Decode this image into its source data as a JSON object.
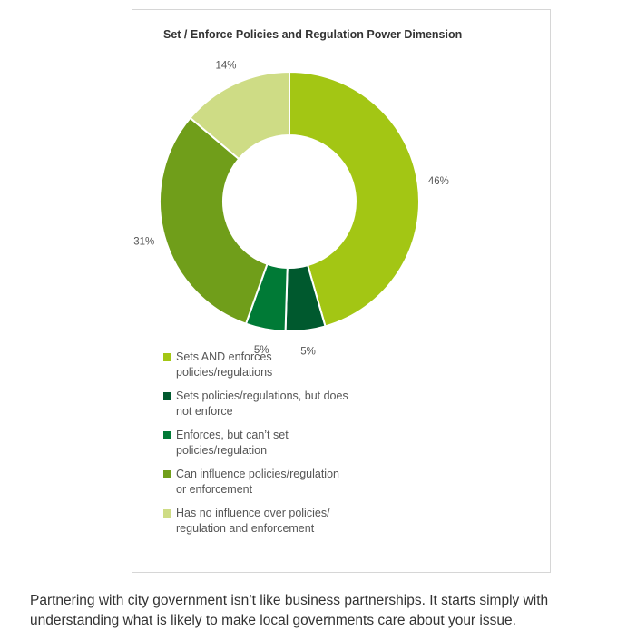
{
  "chart_data": {
    "type": "pie",
    "title": "Set / Enforce Policies and Regulation Power Dimension",
    "donut": true,
    "legend_position": "bottom-left",
    "series": [
      {
        "name": "Sets AND enforces policies/regulations",
        "value": 46,
        "label": "46%",
        "color": "#a3c614"
      },
      {
        "name": "Sets policies/regulations, but does not enforce",
        "value": 5,
        "label": "5%",
        "color": "#00592e"
      },
      {
        "name": "Enforces, but can't set policies/regulation",
        "value": 5,
        "label": "5%",
        "color": "#007a36"
      },
      {
        "name": "Can influence policies/regulation or enforcement",
        "value": 31,
        "label": "31%",
        "color": "#709e1a"
      },
      {
        "name": "Has no influence over policies/ regulation and enforcement",
        "value": 14,
        "label": "14%",
        "color": "#cedc85"
      }
    ]
  },
  "legend_items": [
    {
      "line1": "Sets AND enforces",
      "line2": "policies/regulations",
      "color": "#a3c614"
    },
    {
      "line1": "Sets policies/regulations, but does",
      "line2": "not enforce",
      "color": "#00592e"
    },
    {
      "line1": "Enforces, but can’t set",
      "line2": "policies/regulation",
      "color": "#007a36"
    },
    {
      "line1": "Can influence policies/regulation",
      "line2": "or enforcement",
      "color": "#709e1a"
    },
    {
      "line1": "Has no influence over policies/",
      "line2": "regulation and enforcement",
      "color": "#cedc85"
    }
  ],
  "caption": {
    "text": "Partnering with city government isn’t like business partnerships. It starts simply with understanding what is likely to make local governments care about your issue."
  }
}
